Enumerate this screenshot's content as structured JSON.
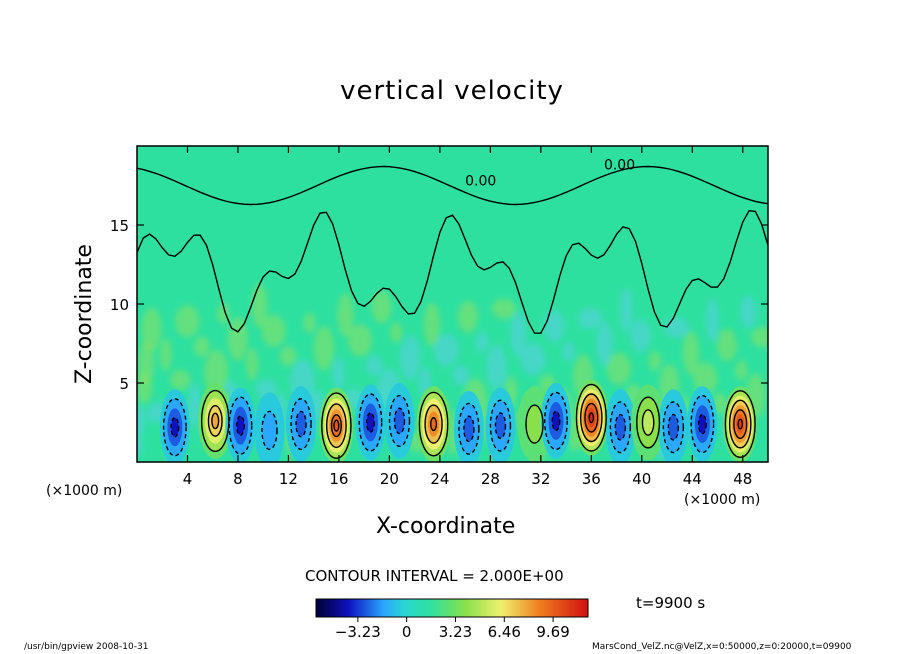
{
  "chart_data": {
    "type": "heatmap",
    "title": "vertical velocity",
    "xlabel": "X-coordinate",
    "ylabel": "Z-coordinate",
    "x_unit_label": "(×1000 m)",
    "xlim": [
      0,
      50
    ],
    "ylim": [
      0,
      20
    ],
    "x_ticks": [
      4,
      8,
      12,
      16,
      20,
      24,
      28,
      32,
      36,
      40,
      44,
      48
    ],
    "y_ticks": [
      5,
      10,
      15
    ],
    "contour_label": "0.00",
    "contour_interval_text": "CONTOUR INTERVAL = 2.000E+00",
    "time_text": "t=9900 s",
    "colorbar": {
      "ticks": [
        -3.23,
        0,
        3.23,
        6.46,
        9.69
      ],
      "tick_labels": [
        "−3.23",
        "0",
        "3.23",
        "6.46",
        "9.69"
      ],
      "min": -6.0,
      "max": 12.0
    },
    "cells": [
      {
        "x": 3.0,
        "z": 2.2,
        "w": -4
      },
      {
        "x": 6.2,
        "z": 2.6,
        "w": 6
      },
      {
        "x": 8.2,
        "z": 2.3,
        "w": -4
      },
      {
        "x": 10.5,
        "z": 2.0,
        "w": -2
      },
      {
        "x": 13.0,
        "z": 2.4,
        "w": -3
      },
      {
        "x": 15.8,
        "z": 2.3,
        "w": 9
      },
      {
        "x": 18.5,
        "z": 2.5,
        "w": -4
      },
      {
        "x": 20.8,
        "z": 2.6,
        "w": -3
      },
      {
        "x": 23.5,
        "z": 2.4,
        "w": 8
      },
      {
        "x": 26.3,
        "z": 2.1,
        "w": -3
      },
      {
        "x": 28.8,
        "z": 2.3,
        "w": -3
      },
      {
        "x": 31.5,
        "z": 2.4,
        "w": 2
      },
      {
        "x": 33.2,
        "z": 2.6,
        "w": -4
      },
      {
        "x": 36.0,
        "z": 2.8,
        "w": 11
      },
      {
        "x": 38.3,
        "z": 2.2,
        "w": -3
      },
      {
        "x": 40.5,
        "z": 2.5,
        "w": 3
      },
      {
        "x": 42.5,
        "z": 2.2,
        "w": -3
      },
      {
        "x": 44.8,
        "z": 2.4,
        "w": -4
      },
      {
        "x": 47.8,
        "z": 2.4,
        "w": 10
      }
    ]
  },
  "footer": {
    "left": "/usr/bin/gpview    2008-10-31",
    "right": "MarsCond_VelZ.nc@VelZ,x=0:50000,z=0:20000,t=09900"
  }
}
